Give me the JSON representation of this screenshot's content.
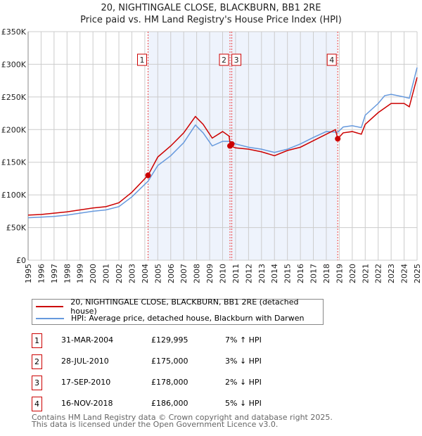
{
  "chart_data": {
    "type": "line",
    "title": "20, NIGHTINGALE CLOSE, BLACKBURN, BB1 2RE",
    "subtitle": "Price paid vs. HM Land Registry's House Price Index (HPI)",
    "xlim": [
      1995,
      2025
    ],
    "ylim": [
      0,
      350000
    ],
    "y_ticks": [
      0,
      50000,
      100000,
      150000,
      200000,
      250000,
      300000,
      350000
    ],
    "y_tick_labels": [
      "£0",
      "£50K",
      "£100K",
      "£150K",
      "£200K",
      "£250K",
      "£300K",
      "£350K"
    ],
    "x_tick_labels": [
      "1995",
      "1996",
      "1997",
      "1998",
      "1999",
      "2000",
      "2001",
      "2002",
      "2003",
      "2004",
      "2005",
      "2006",
      "2007",
      "2008",
      "2009",
      "2010",
      "2011",
      "2012",
      "2013",
      "2014",
      "2015",
      "2016",
      "2017",
      "2018",
      "2019",
      "2020",
      "2021",
      "2022",
      "2023",
      "2024",
      "2025"
    ],
    "grid": true,
    "shaded_range": [
      2004.25,
      2018.88
    ],
    "series": [
      {
        "name": "20, NIGHTINGALE CLOSE, BLACKBURN, BB1 2RE (detached house)",
        "color": "#cc0000",
        "x": [
          1995,
          1996,
          1997,
          1998,
          1999,
          2000,
          2001,
          2002,
          2003,
          2004.25,
          2005,
          2006,
          2007,
          2007.9,
          2008.5,
          2009.2,
          2010,
          2010.5,
          2010.6,
          2011,
          2012,
          2013,
          2014,
          2015,
          2016,
          2017,
          2018,
          2018.7,
          2018.88,
          2019.3,
          2020,
          2020.7,
          2021,
          2022,
          2023,
          2024,
          2024.4,
          2025
        ],
        "y": [
          69000,
          70000,
          72000,
          74000,
          77000,
          80000,
          82000,
          88000,
          104000,
          130000,
          158000,
          175000,
          195000,
          220000,
          208000,
          187000,
          197000,
          190000,
          175000,
          172000,
          170000,
          166000,
          160000,
          168000,
          173000,
          183000,
          193000,
          200000,
          186000,
          195000,
          197000,
          193000,
          208000,
          226000,
          240000,
          240000,
          235000,
          280000
        ]
      },
      {
        "name": "HPI: Average price, detached house, Blackburn with Darwen",
        "color": "#6699dd",
        "x": [
          1995,
          1996,
          1997,
          1998,
          1999,
          2000,
          2001,
          2002,
          2003,
          2004.25,
          2005,
          2006,
          2007,
          2007.9,
          2008.5,
          2009.2,
          2010,
          2010.6,
          2011,
          2012,
          2013,
          2014,
          2015,
          2016,
          2017,
          2018,
          2018.88,
          2019.3,
          2020,
          2020.7,
          2021,
          2022,
          2022.5,
          2023,
          2024,
          2024.4,
          2025
        ],
        "y": [
          65000,
          66000,
          67000,
          69000,
          72000,
          75000,
          77000,
          82000,
          97000,
          121000,
          145000,
          160000,
          180000,
          207000,
          195000,
          175000,
          182000,
          182000,
          178000,
          173000,
          170000,
          165000,
          170000,
          178000,
          188000,
          197000,
          196000,
          204000,
          206000,
          203000,
          222000,
          240000,
          252000,
          254000,
          250000,
          248000,
          295000
        ]
      }
    ],
    "sales": [
      {
        "label": "1",
        "date": "31-MAR-2004",
        "x": 2004.25,
        "price_value": 129995,
        "price": "£129,995",
        "hpi": "7% ↑ HPI"
      },
      {
        "label": "2",
        "date": "28-JUL-2010",
        "x": 2010.57,
        "price_value": 175000,
        "price": "£175,000",
        "hpi": "3% ↓ HPI"
      },
      {
        "label": "3",
        "date": "17-SEP-2010",
        "x": 2010.71,
        "price_value": 178000,
        "price": "£178,000",
        "hpi": "2% ↓ HPI"
      },
      {
        "label": "4",
        "date": "16-NOV-2018",
        "x": 2018.88,
        "price_value": 186000,
        "price": "£186,000",
        "hpi": "5% ↓ HPI"
      }
    ]
  },
  "footer": {
    "line1": "Contains HM Land Registry data © Crown copyright and database right 2025.",
    "line2": "This data is licensed under the Open Government Licence v3.0."
  }
}
